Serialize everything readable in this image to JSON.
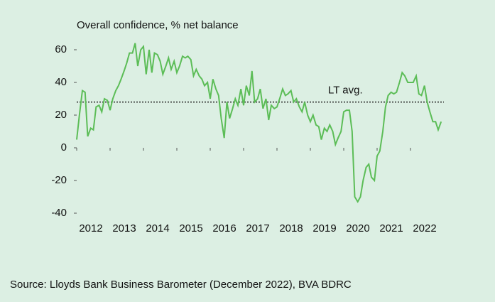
{
  "chart_data": {
    "type": "line",
    "title": "Overall confidence, % net balance",
    "source": "Source: Lloyds Bank Business Barometer (December 2022), BVA BDRC",
    "xlim": [
      2012,
      2023
    ],
    "xticks": [
      2012,
      2013,
      2014,
      2015,
      2016,
      2017,
      2018,
      2019,
      2020,
      2021,
      2022
    ],
    "ylim": [
      -40,
      70
    ],
    "yticks": [
      -40,
      -20,
      0,
      20,
      40,
      60
    ],
    "reference_line": {
      "label": "LT avg.",
      "value": 28,
      "color": "#222222"
    },
    "x": [
      2012.0,
      2012.08,
      2012.17,
      2012.25,
      2012.33,
      2012.42,
      2012.5,
      2012.58,
      2012.67,
      2012.75,
      2012.83,
      2012.92,
      2013.0,
      2013.08,
      2013.17,
      2013.25,
      2013.33,
      2013.42,
      2013.5,
      2013.58,
      2013.67,
      2013.75,
      2013.83,
      2013.92,
      2014.0,
      2014.08,
      2014.17,
      2014.25,
      2014.33,
      2014.42,
      2014.5,
      2014.58,
      2014.67,
      2014.75,
      2014.83,
      2014.92,
      2015.0,
      2015.08,
      2015.17,
      2015.25,
      2015.33,
      2015.42,
      2015.5,
      2015.58,
      2015.67,
      2015.75,
      2015.83,
      2015.92,
      2016.0,
      2016.08,
      2016.17,
      2016.25,
      2016.33,
      2016.42,
      2016.5,
      2016.58,
      2016.67,
      2016.75,
      2016.83,
      2016.92,
      2017.0,
      2017.08,
      2017.17,
      2017.25,
      2017.33,
      2017.42,
      2017.5,
      2017.58,
      2017.67,
      2017.75,
      2017.83,
      2017.92,
      2018.0,
      2018.08,
      2018.17,
      2018.25,
      2018.33,
      2018.42,
      2018.5,
      2018.58,
      2018.67,
      2018.75,
      2018.83,
      2018.92,
      2019.0,
      2019.08,
      2019.17,
      2019.25,
      2019.33,
      2019.42,
      2019.5,
      2019.58,
      2019.67,
      2019.75,
      2019.83,
      2019.92,
      2020.0,
      2020.08,
      2020.17,
      2020.25,
      2020.33,
      2020.42,
      2020.5,
      2020.58,
      2020.67,
      2020.75,
      2020.83,
      2020.92,
      2021.0,
      2021.08,
      2021.17,
      2021.25,
      2021.33,
      2021.42,
      2021.5,
      2021.58,
      2021.67,
      2021.75,
      2021.83,
      2021.92,
      2022.0,
      2022.08,
      2022.17,
      2022.25,
      2022.33,
      2022.42,
      2022.5,
      2022.58,
      2022.67,
      2022.75,
      2022.83,
      2022.92
    ],
    "series": [
      {
        "name": "Overall confidence",
        "color": "#5cbd57",
        "values": [
          5,
          20,
          35,
          34,
          7,
          12,
          11,
          25,
          26,
          22,
          30,
          29,
          23,
          30,
          35,
          38,
          42,
          47,
          52,
          58,
          58,
          64,
          50,
          60,
          62,
          45,
          60,
          46,
          58,
          57,
          53,
          45,
          50,
          55,
          48,
          53,
          46,
          50,
          56,
          55,
          56,
          54,
          44,
          48,
          44,
          42,
          38,
          40,
          30,
          42,
          36,
          32,
          18,
          6,
          28,
          18,
          24,
          30,
          26,
          36,
          26,
          38,
          32,
          47,
          28,
          30,
          36,
          24,
          30,
          17,
          26,
          24,
          25,
          30,
          36,
          32,
          33,
          35,
          28,
          30,
          25,
          22,
          28,
          20,
          16,
          20,
          14,
          13,
          5,
          12,
          10,
          14,
          10,
          2,
          6,
          10,
          22,
          23,
          23,
          10,
          -30,
          -33,
          -30,
          -20,
          -12,
          -10,
          -18,
          -20,
          -5,
          -2,
          10,
          25,
          32,
          34,
          33,
          34,
          40,
          46,
          44,
          40,
          40,
          40,
          44,
          33,
          32,
          38,
          28,
          22,
          16,
          16,
          11,
          16
        ]
      }
    ]
  }
}
